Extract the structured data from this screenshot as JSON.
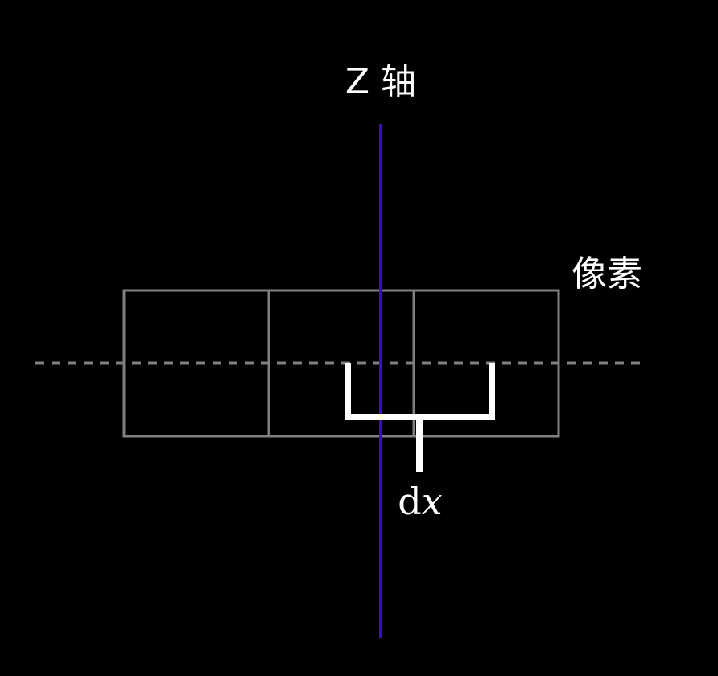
{
  "labels": {
    "z_axis": "Z 轴",
    "pixel": "像素",
    "dx_d": "d",
    "dx_x": "x"
  },
  "colors": {
    "background": "#000000",
    "z_axis_line": "#3a0ccf",
    "pixel_grid": "#808080",
    "center_line": "#808080",
    "bracket": "#ffffff",
    "text": "#ffffff"
  }
}
